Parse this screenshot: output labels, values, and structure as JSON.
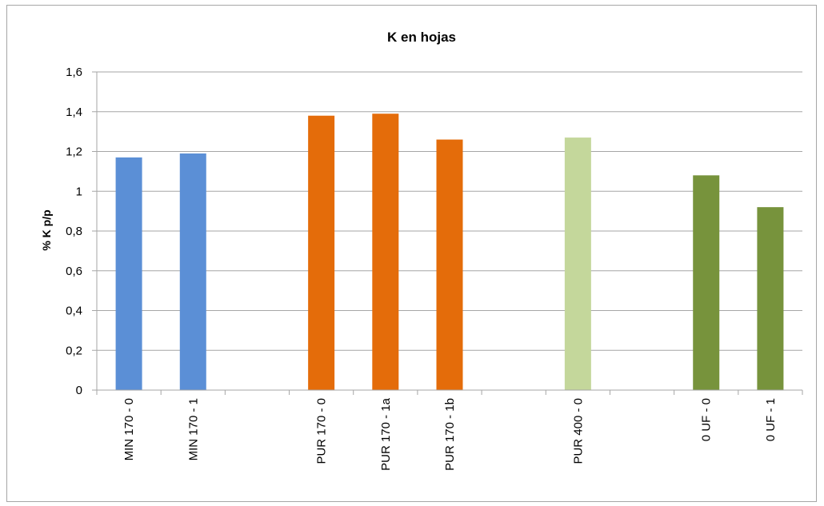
{
  "chart_data": {
    "type": "bar",
    "title": "K en hojas",
    "xlabel": "",
    "ylabel": "% K p/p",
    "ylim": [
      0,
      1.6
    ],
    "yticks": [
      "0",
      "0,2",
      "0,4",
      "0,6",
      "0,8",
      "1",
      "1,2",
      "1,4",
      "1,6"
    ],
    "grid": true,
    "legend": "none",
    "categories": [
      "MIN 170 - 0",
      "MIN 170 - 1",
      "",
      "PUR 170 - 0",
      "PUR 170 - 1a",
      "PUR 170 - 1b",
      "",
      "PUR 400 - 0",
      "",
      "0 UF - 0",
      "0 UF - 1"
    ],
    "values": [
      1.17,
      1.19,
      null,
      1.38,
      1.39,
      1.26,
      null,
      1.27,
      null,
      1.08,
      0.92
    ],
    "colors": [
      "#5B8FD6",
      "#5B8FD6",
      null,
      "#E46C0A",
      "#E46C0A",
      "#E46C0A",
      null,
      "#C4D79B",
      null,
      "#77933C",
      "#77933C"
    ]
  }
}
